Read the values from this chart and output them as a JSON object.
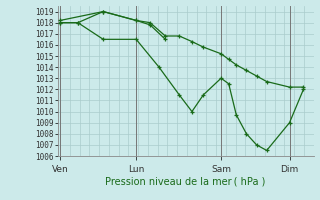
{
  "background_color": "#cceaea",
  "grid_color": "#aacccc",
  "line_color": "#1a6b1a",
  "xlabel": "Pression niveau de la mer ( hPa )",
  "ylim": [
    1006,
    1019.5
  ],
  "ytick_min": 1006,
  "ytick_max": 1019,
  "xtick_labels": [
    "Ven",
    "Lun",
    "Sam",
    "Dim"
  ],
  "xtick_positions": [
    0.0,
    0.3,
    0.635,
    0.905
  ],
  "series": [
    {
      "x": [
        0.0,
        0.07,
        0.17,
        0.3,
        0.39,
        0.47,
        0.52,
        0.565,
        0.635,
        0.665,
        0.695,
        0.735,
        0.775,
        0.815,
        0.905,
        0.96
      ],
      "y": [
        1018.0,
        1018.0,
        1016.5,
        1016.5,
        1014.0,
        1011.5,
        1010.0,
        1011.5,
        1013.0,
        1012.5,
        1009.7,
        1008.0,
        1007.0,
        1006.5,
        1009.0,
        1012.0
      ]
    },
    {
      "x": [
        0.0,
        0.17,
        0.3,
        0.355,
        0.415,
        0.47,
        0.52,
        0.565,
        0.635,
        0.665,
        0.695,
        0.735,
        0.775,
        0.815,
        0.905,
        0.96
      ],
      "y": [
        1018.2,
        1019.0,
        1018.2,
        1018.0,
        1016.8,
        1016.8,
        1016.3,
        1015.8,
        1015.2,
        1014.7,
        1014.2,
        1013.7,
        1013.2,
        1012.7,
        1012.2,
        1012.2
      ]
    },
    {
      "x": [
        0.0,
        0.07,
        0.17,
        0.3,
        0.355,
        0.415
      ],
      "y": [
        1018.0,
        1018.0,
        1019.0,
        1018.2,
        1017.8,
        1016.5
      ]
    }
  ]
}
